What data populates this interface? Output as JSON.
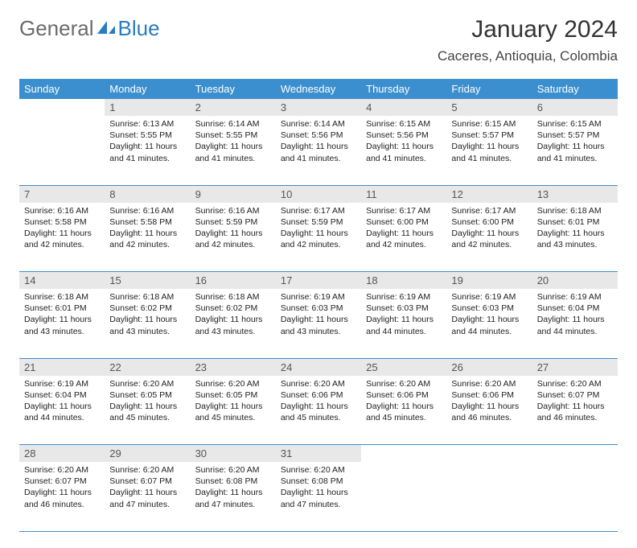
{
  "logo": {
    "text1": "General",
    "text2": "Blue"
  },
  "title": "January 2024",
  "location": "Caceres, Antioquia, Colombia",
  "colors": {
    "header_bg": "#3b8fce",
    "header_text": "#ffffff",
    "daynum_bg": "#e8e8e8",
    "daynum_text": "#555555",
    "body_text": "#222222",
    "border": "#3b8fce",
    "logo_gray": "#6b6b6b",
    "logo_blue": "#2b7bbf"
  },
  "day_headers": [
    "Sunday",
    "Monday",
    "Tuesday",
    "Wednesday",
    "Thursday",
    "Friday",
    "Saturday"
  ],
  "weeks": [
    [
      {
        "n": "",
        "sr": "",
        "ss": "",
        "dl": ""
      },
      {
        "n": "1",
        "sr": "Sunrise: 6:13 AM",
        "ss": "Sunset: 5:55 PM",
        "dl": "Daylight: 11 hours and 41 minutes."
      },
      {
        "n": "2",
        "sr": "Sunrise: 6:14 AM",
        "ss": "Sunset: 5:55 PM",
        "dl": "Daylight: 11 hours and 41 minutes."
      },
      {
        "n": "3",
        "sr": "Sunrise: 6:14 AM",
        "ss": "Sunset: 5:56 PM",
        "dl": "Daylight: 11 hours and 41 minutes."
      },
      {
        "n": "4",
        "sr": "Sunrise: 6:15 AM",
        "ss": "Sunset: 5:56 PM",
        "dl": "Daylight: 11 hours and 41 minutes."
      },
      {
        "n": "5",
        "sr": "Sunrise: 6:15 AM",
        "ss": "Sunset: 5:57 PM",
        "dl": "Daylight: 11 hours and 41 minutes."
      },
      {
        "n": "6",
        "sr": "Sunrise: 6:15 AM",
        "ss": "Sunset: 5:57 PM",
        "dl": "Daylight: 11 hours and 41 minutes."
      }
    ],
    [
      {
        "n": "7",
        "sr": "Sunrise: 6:16 AM",
        "ss": "Sunset: 5:58 PM",
        "dl": "Daylight: 11 hours and 42 minutes."
      },
      {
        "n": "8",
        "sr": "Sunrise: 6:16 AM",
        "ss": "Sunset: 5:58 PM",
        "dl": "Daylight: 11 hours and 42 minutes."
      },
      {
        "n": "9",
        "sr": "Sunrise: 6:16 AM",
        "ss": "Sunset: 5:59 PM",
        "dl": "Daylight: 11 hours and 42 minutes."
      },
      {
        "n": "10",
        "sr": "Sunrise: 6:17 AM",
        "ss": "Sunset: 5:59 PM",
        "dl": "Daylight: 11 hours and 42 minutes."
      },
      {
        "n": "11",
        "sr": "Sunrise: 6:17 AM",
        "ss": "Sunset: 6:00 PM",
        "dl": "Daylight: 11 hours and 42 minutes."
      },
      {
        "n": "12",
        "sr": "Sunrise: 6:17 AM",
        "ss": "Sunset: 6:00 PM",
        "dl": "Daylight: 11 hours and 42 minutes."
      },
      {
        "n": "13",
        "sr": "Sunrise: 6:18 AM",
        "ss": "Sunset: 6:01 PM",
        "dl": "Daylight: 11 hours and 43 minutes."
      }
    ],
    [
      {
        "n": "14",
        "sr": "Sunrise: 6:18 AM",
        "ss": "Sunset: 6:01 PM",
        "dl": "Daylight: 11 hours and 43 minutes."
      },
      {
        "n": "15",
        "sr": "Sunrise: 6:18 AM",
        "ss": "Sunset: 6:02 PM",
        "dl": "Daylight: 11 hours and 43 minutes."
      },
      {
        "n": "16",
        "sr": "Sunrise: 6:18 AM",
        "ss": "Sunset: 6:02 PM",
        "dl": "Daylight: 11 hours and 43 minutes."
      },
      {
        "n": "17",
        "sr": "Sunrise: 6:19 AM",
        "ss": "Sunset: 6:03 PM",
        "dl": "Daylight: 11 hours and 43 minutes."
      },
      {
        "n": "18",
        "sr": "Sunrise: 6:19 AM",
        "ss": "Sunset: 6:03 PM",
        "dl": "Daylight: 11 hours and 44 minutes."
      },
      {
        "n": "19",
        "sr": "Sunrise: 6:19 AM",
        "ss": "Sunset: 6:03 PM",
        "dl": "Daylight: 11 hours and 44 minutes."
      },
      {
        "n": "20",
        "sr": "Sunrise: 6:19 AM",
        "ss": "Sunset: 6:04 PM",
        "dl": "Daylight: 11 hours and 44 minutes."
      }
    ],
    [
      {
        "n": "21",
        "sr": "Sunrise: 6:19 AM",
        "ss": "Sunset: 6:04 PM",
        "dl": "Daylight: 11 hours and 44 minutes."
      },
      {
        "n": "22",
        "sr": "Sunrise: 6:20 AM",
        "ss": "Sunset: 6:05 PM",
        "dl": "Daylight: 11 hours and 45 minutes."
      },
      {
        "n": "23",
        "sr": "Sunrise: 6:20 AM",
        "ss": "Sunset: 6:05 PM",
        "dl": "Daylight: 11 hours and 45 minutes."
      },
      {
        "n": "24",
        "sr": "Sunrise: 6:20 AM",
        "ss": "Sunset: 6:06 PM",
        "dl": "Daylight: 11 hours and 45 minutes."
      },
      {
        "n": "25",
        "sr": "Sunrise: 6:20 AM",
        "ss": "Sunset: 6:06 PM",
        "dl": "Daylight: 11 hours and 45 minutes."
      },
      {
        "n": "26",
        "sr": "Sunrise: 6:20 AM",
        "ss": "Sunset: 6:06 PM",
        "dl": "Daylight: 11 hours and 46 minutes."
      },
      {
        "n": "27",
        "sr": "Sunrise: 6:20 AM",
        "ss": "Sunset: 6:07 PM",
        "dl": "Daylight: 11 hours and 46 minutes."
      }
    ],
    [
      {
        "n": "28",
        "sr": "Sunrise: 6:20 AM",
        "ss": "Sunset: 6:07 PM",
        "dl": "Daylight: 11 hours and 46 minutes."
      },
      {
        "n": "29",
        "sr": "Sunrise: 6:20 AM",
        "ss": "Sunset: 6:07 PM",
        "dl": "Daylight: 11 hours and 47 minutes."
      },
      {
        "n": "30",
        "sr": "Sunrise: 6:20 AM",
        "ss": "Sunset: 6:08 PM",
        "dl": "Daylight: 11 hours and 47 minutes."
      },
      {
        "n": "31",
        "sr": "Sunrise: 6:20 AM",
        "ss": "Sunset: 6:08 PM",
        "dl": "Daylight: 11 hours and 47 minutes."
      },
      {
        "n": "",
        "sr": "",
        "ss": "",
        "dl": ""
      },
      {
        "n": "",
        "sr": "",
        "ss": "",
        "dl": ""
      },
      {
        "n": "",
        "sr": "",
        "ss": "",
        "dl": ""
      }
    ]
  ]
}
